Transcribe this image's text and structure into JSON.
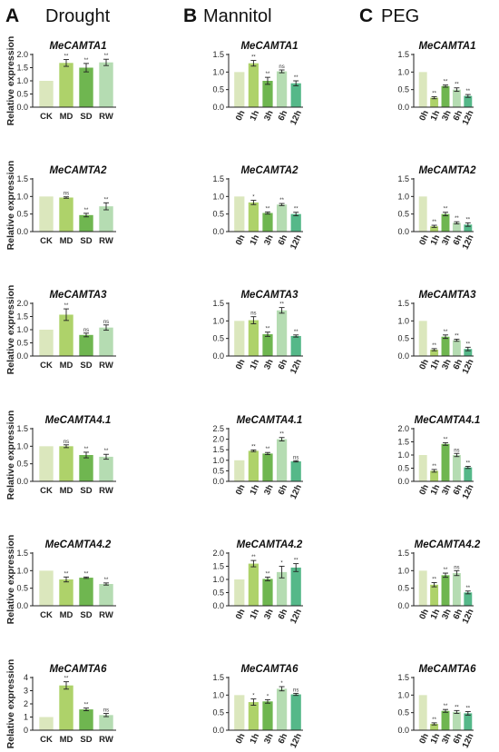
{
  "panel_headers": [
    {
      "letter": "A",
      "title": "Drought"
    },
    {
      "letter": "B",
      "title": "Mannitol"
    },
    {
      "letter": "C",
      "title": "PEG"
    }
  ],
  "ylabel": "Relative expression",
  "colors": {
    "drought": [
      "#dbe7bd",
      "#aed26a",
      "#6fb650",
      "#b5dcb2"
    ],
    "timecourse": [
      "#dbe7bd",
      "#aed26a",
      "#6fb650",
      "#b5dcb2",
      "#55b889"
    ]
  },
  "chart_data": [
    {
      "type": "bar",
      "title": "MeCAMTA1",
      "categories": [
        "CK",
        "MD",
        "SD",
        "RW"
      ],
      "values": [
        1.0,
        1.68,
        1.5,
        1.7
      ],
      "errors": [
        0,
        0.13,
        0.16,
        0.12
      ],
      "significance": [
        "",
        "**",
        "**",
        "**"
      ],
      "ylim": [
        0,
        2.0
      ],
      "yticks": [
        0.0,
        0.5,
        1.0,
        1.5,
        2.0
      ]
    },
    {
      "type": "bar",
      "title": "MeCAMTA1",
      "categories": [
        "0h",
        "1h",
        "3h",
        "6h",
        "12h"
      ],
      "values": [
        1.0,
        1.25,
        0.75,
        1.02,
        0.68
      ],
      "errors": [
        0,
        0.08,
        0.1,
        0.04,
        0.07
      ],
      "significance": [
        "",
        "**",
        "**",
        "ns",
        "**"
      ],
      "ylim": [
        0,
        1.5
      ],
      "yticks": [
        0.0,
        0.5,
        1.0,
        1.5
      ]
    },
    {
      "type": "bar",
      "title": "MeCAMTA1",
      "categories": [
        "0h",
        "1h",
        "3h",
        "6h",
        "12h"
      ],
      "values": [
        1.0,
        0.27,
        0.6,
        0.5,
        0.32
      ],
      "errors": [
        0,
        0.03,
        0.03,
        0.05,
        0.04
      ],
      "significance": [
        "",
        "**",
        "**",
        "**",
        "**"
      ],
      "ylim": [
        0,
        1.5
      ],
      "yticks": [
        0.0,
        0.5,
        1.0,
        1.5
      ]
    },
    {
      "type": "bar",
      "title": "MeCAMTA2",
      "categories": [
        "CK",
        "MD",
        "SD",
        "RW"
      ],
      "values": [
        1.0,
        0.97,
        0.47,
        0.72
      ],
      "errors": [
        0,
        0.02,
        0.05,
        0.1
      ],
      "significance": [
        "",
        "ns",
        "**",
        "**"
      ],
      "ylim": [
        0,
        1.5
      ],
      "yticks": [
        0.0,
        0.5,
        1.0,
        1.5
      ]
    },
    {
      "type": "bar",
      "title": "MeCAMTA2",
      "categories": [
        "0h",
        "1h",
        "3h",
        "6h",
        "12h"
      ],
      "values": [
        1.0,
        0.83,
        0.53,
        0.77,
        0.5
      ],
      "errors": [
        0,
        0.06,
        0.03,
        0.03,
        0.05
      ],
      "significance": [
        "",
        "*",
        "**",
        "**",
        "**"
      ],
      "ylim": [
        0,
        1.5
      ],
      "yticks": [
        0.0,
        0.5,
        1.0,
        1.5
      ]
    },
    {
      "type": "bar",
      "title": "MeCAMTA2",
      "categories": [
        "0h",
        "1h",
        "3h",
        "6h",
        "12h"
      ],
      "values": [
        1.0,
        0.15,
        0.5,
        0.25,
        0.2
      ],
      "errors": [
        0,
        0.03,
        0.05,
        0.03,
        0.05
      ],
      "significance": [
        "",
        "**",
        "**",
        "**",
        "**"
      ],
      "ylim": [
        0,
        1.5
      ],
      "yticks": [
        0.0,
        0.5,
        1.0,
        1.5
      ]
    },
    {
      "type": "bar",
      "title": "MeCAMTA3",
      "categories": [
        "CK",
        "MD",
        "SD",
        "RW"
      ],
      "values": [
        1.0,
        1.57,
        0.8,
        1.08
      ],
      "errors": [
        0,
        0.22,
        0.07,
        0.1
      ],
      "significance": [
        "",
        "**",
        "ns",
        "ns"
      ],
      "ylim": [
        0,
        2.0
      ],
      "yticks": [
        0.0,
        0.5,
        1.0,
        1.5,
        2.0
      ]
    },
    {
      "type": "bar",
      "title": "MeCAMTA3",
      "categories": [
        "0h",
        "1h",
        "3h",
        "6h",
        "12h"
      ],
      "values": [
        1.0,
        1.02,
        0.62,
        1.3,
        0.57
      ],
      "errors": [
        0,
        0.1,
        0.06,
        0.08,
        0.03
      ],
      "significance": [
        "",
        "ns",
        "**",
        "**",
        "**"
      ],
      "ylim": [
        0,
        1.5
      ],
      "yticks": [
        0.0,
        0.5,
        1.0,
        1.5
      ]
    },
    {
      "type": "bar",
      "title": "MeCAMTA3",
      "categories": [
        "0h",
        "1h",
        "3h",
        "6h",
        "12h"
      ],
      "values": [
        1.0,
        0.18,
        0.55,
        0.45,
        0.2
      ],
      "errors": [
        0,
        0.03,
        0.05,
        0.03,
        0.05
      ],
      "significance": [
        "",
        "**",
        "**",
        "**",
        "**"
      ],
      "ylim": [
        0,
        1.5
      ],
      "yticks": [
        0.0,
        0.5,
        1.0,
        1.5
      ]
    },
    {
      "type": "bar",
      "title": "MeCAMTA4.1",
      "categories": [
        "CK",
        "MD",
        "SD",
        "RW"
      ],
      "values": [
        1.0,
        1.0,
        0.75,
        0.7
      ],
      "errors": [
        0,
        0.04,
        0.08,
        0.07
      ],
      "significance": [
        "",
        "ns",
        "**",
        "**"
      ],
      "ylim": [
        0,
        1.5
      ],
      "yticks": [
        0.0,
        0.5,
        1.0,
        1.5
      ]
    },
    {
      "type": "bar",
      "title": "MeCAMTA4.1",
      "categories": [
        "0h",
        "1h",
        "3h",
        "6h",
        "12h"
      ],
      "values": [
        1.0,
        1.45,
        1.32,
        2.0,
        0.95
      ],
      "errors": [
        0,
        0.04,
        0.05,
        0.08,
        0.03
      ],
      "significance": [
        "",
        "**",
        "**",
        "**",
        "ns"
      ],
      "ylim": [
        0,
        2.5
      ],
      "yticks": [
        0.0,
        0.5,
        1.0,
        1.5,
        2.0,
        2.5
      ]
    },
    {
      "type": "bar",
      "title": "MeCAMTA4.1",
      "categories": [
        "0h",
        "1h",
        "3h",
        "6h",
        "12h"
      ],
      "values": [
        1.0,
        0.4,
        1.42,
        1.0,
        0.53
      ],
      "errors": [
        0,
        0.05,
        0.05,
        0.06,
        0.04
      ],
      "significance": [
        "",
        "**",
        "**",
        "ns",
        "**"
      ],
      "ylim": [
        0,
        2.0
      ],
      "yticks": [
        0.0,
        0.5,
        1.0,
        1.5,
        2.0
      ]
    },
    {
      "type": "bar",
      "title": "MeCAMTA4.2",
      "categories": [
        "CK",
        "MD",
        "SD",
        "RW"
      ],
      "values": [
        1.0,
        0.75,
        0.8,
        0.62
      ],
      "errors": [
        0,
        0.07,
        0.02,
        0.03
      ],
      "significance": [
        "",
        "**",
        "**",
        "**"
      ],
      "ylim": [
        0,
        1.5
      ],
      "yticks": [
        0.0,
        0.5,
        1.0,
        1.5
      ]
    },
    {
      "type": "bar",
      "title": "MeCAMTA4.2",
      "categories": [
        "0h",
        "1h",
        "3h",
        "6h",
        "12h"
      ],
      "values": [
        1.0,
        1.6,
        1.02,
        1.28,
        1.45
      ],
      "errors": [
        0,
        0.12,
        0.07,
        0.22,
        0.15
      ],
      "significance": [
        "",
        "**",
        "**",
        "*",
        "**"
      ],
      "ylim": [
        0,
        2.0
      ],
      "yticks": [
        0.0,
        0.5,
        1.0,
        1.5,
        2.0
      ]
    },
    {
      "type": "bar",
      "title": "MeCAMTA4.2",
      "categories": [
        "0h",
        "1h",
        "3h",
        "6h",
        "12h"
      ],
      "values": [
        1.0,
        0.6,
        0.87,
        0.93,
        0.38
      ],
      "errors": [
        0,
        0.06,
        0.06,
        0.07,
        0.04
      ],
      "significance": [
        "",
        "**",
        "**",
        "ns",
        "**"
      ],
      "ylim": [
        0,
        1.5
      ],
      "yticks": [
        0.0,
        0.5,
        1.0,
        1.5
      ]
    },
    {
      "type": "bar",
      "title": "MeCAMTA6",
      "categories": [
        "CK",
        "MD",
        "SD",
        "RW"
      ],
      "values": [
        1.0,
        3.4,
        1.58,
        1.15
      ],
      "errors": [
        0,
        0.28,
        0.1,
        0.12
      ],
      "significance": [
        "",
        "**",
        "**",
        "ns"
      ],
      "ylim": [
        0,
        4
      ],
      "yticks": [
        0,
        1,
        2,
        3,
        4
      ]
    },
    {
      "type": "bar",
      "title": "MeCAMTA6",
      "categories": [
        "0h",
        "1h",
        "3h",
        "6h",
        "12h"
      ],
      "values": [
        1.0,
        0.8,
        0.82,
        1.18,
        1.02
      ],
      "errors": [
        0,
        0.09,
        0.05,
        0.06,
        0.03
      ],
      "significance": [
        "",
        "*",
        "*",
        "*",
        "ns"
      ],
      "ylim": [
        0,
        1.5
      ],
      "yticks": [
        0.0,
        0.5,
        1.0,
        1.5
      ]
    },
    {
      "type": "bar",
      "title": "MeCAMTA6",
      "categories": [
        "0h",
        "1h",
        "3h",
        "6h",
        "12h"
      ],
      "values": [
        1.0,
        0.18,
        0.55,
        0.52,
        0.48
      ],
      "errors": [
        0,
        0.03,
        0.04,
        0.04,
        0.05
      ],
      "significance": [
        "",
        "**",
        "**",
        "**",
        "**"
      ],
      "ylim": [
        0,
        1.5
      ],
      "yticks": [
        0.0,
        0.5,
        1.0,
        1.5
      ]
    }
  ]
}
